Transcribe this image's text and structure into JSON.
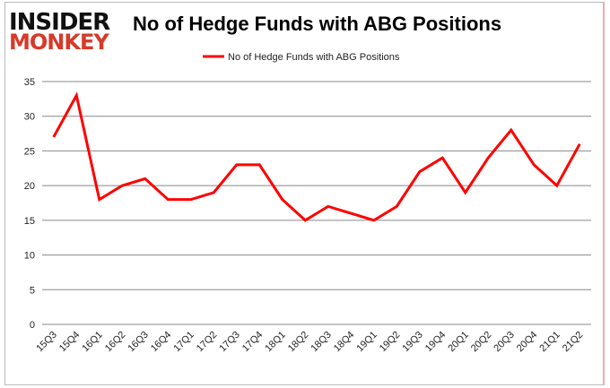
{
  "logo": {
    "line1": "INSIDER",
    "line2": "MONKEY"
  },
  "chart_data": {
    "type": "line",
    "title": "No of Hedge Funds with ABG Positions",
    "xlabel": "",
    "ylabel": "",
    "ylim": [
      0,
      35
    ],
    "yticks": [
      0,
      5,
      10,
      15,
      20,
      25,
      30,
      35
    ],
    "grid": true,
    "legend": "top-center",
    "categories": [
      "15Q3",
      "15Q4",
      "16Q1",
      "16Q2",
      "16Q3",
      "16Q4",
      "17Q1",
      "17Q2",
      "17Q3",
      "17Q4",
      "18Q1",
      "18Q2",
      "18Q3",
      "18Q4",
      "19Q1",
      "19Q2",
      "19Q3",
      "19Q4",
      "20Q1",
      "20Q2",
      "20Q3",
      "20Q4",
      "21Q1",
      "21Q2"
    ],
    "series": [
      {
        "name": "No of Hedge Funds with ABG Positions",
        "color": "#ff0000",
        "values": [
          27,
          33,
          18,
          20,
          21,
          18,
          18,
          19,
          23,
          23,
          18,
          15,
          17,
          16,
          15,
          17,
          22,
          24,
          19,
          24,
          28,
          23,
          20,
          26
        ]
      }
    ]
  }
}
